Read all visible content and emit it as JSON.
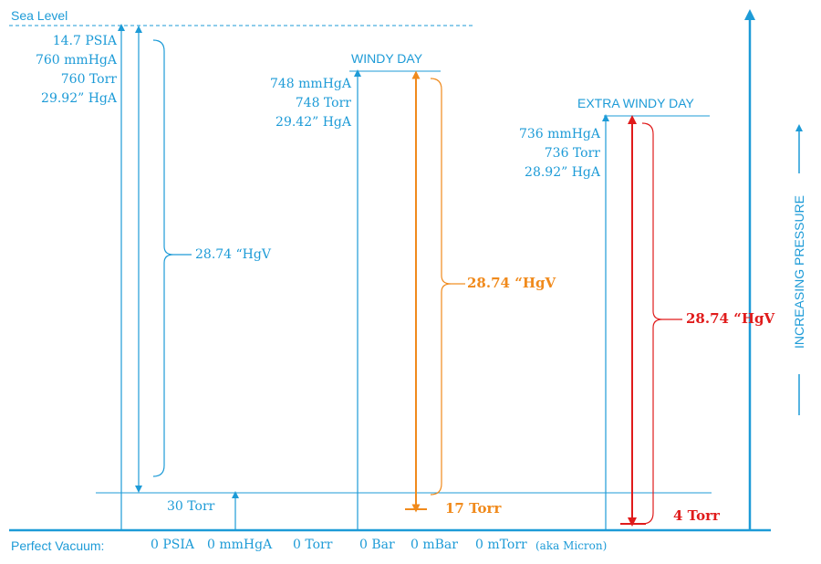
{
  "colors": {
    "blue": "#1d9bd7",
    "orange": "#f08a1c",
    "red": "#e01b1b"
  },
  "sea_level_label": "Sea Level",
  "sea_level_values": [
    "14.7 PSIA",
    "760 mmHgA",
    "760 Torr",
    "29.92” HgA"
  ],
  "sea_level_vacuum_label": "28.74 “HgV",
  "thirty_torr_label": "30 Torr",
  "windy_day": {
    "title": "WINDY DAY",
    "values": [
      "748 mmHgA",
      "748 Torr",
      "29.42” HgA"
    ],
    "vacuum_label": "28.74 “HgV",
    "bottom_label": "17 Torr"
  },
  "extra_windy_day": {
    "title": "EXTRA WINDY DAY",
    "values": [
      "736 mmHgA",
      "736 Torr",
      "28.92” HgA"
    ],
    "vacuum_label": "28.74 “HgV",
    "bottom_label": "4 Torr"
  },
  "perfect_vacuum": {
    "label": "Perfect Vacuum:",
    "values": [
      "0 PSIA",
      "0 mmHgA",
      "0 Torr",
      "0 Bar",
      "0 mBar",
      "0 mTorr"
    ],
    "aka": "(aka Micron)"
  },
  "increasing_pressure_label": "INCREASING PRESSURE"
}
